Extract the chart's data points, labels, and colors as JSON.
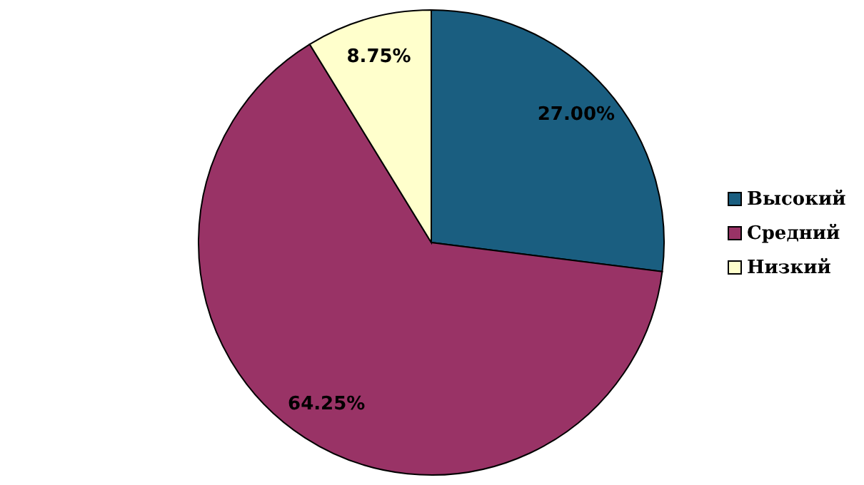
{
  "chart_data": {
    "type": "pie",
    "categories": [
      "Высокий",
      "Средний",
      "Низкий"
    ],
    "values": [
      27,
      64.25,
      8.75
    ],
    "colors": [
      "#1a5e80",
      "#993366",
      "#ffffcc"
    ],
    "value_labels": [
      "27.00%",
      "64.25%",
      "8.75%"
    ],
    "legend": "right"
  }
}
